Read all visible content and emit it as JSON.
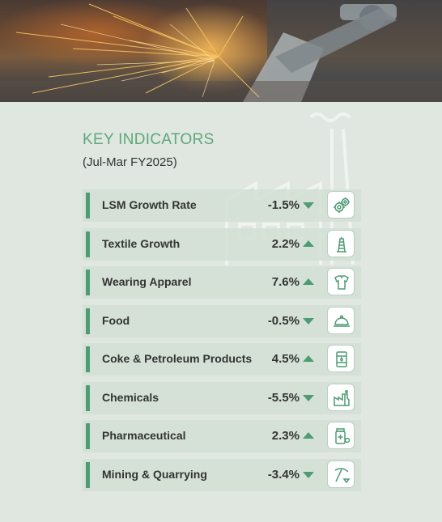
{
  "header": {
    "title": "KEY INDICATORS",
    "subtitle": "(Jul-Mar FY2025)"
  },
  "colors": {
    "accent": "#4e9c74",
    "title": "#5fa77a",
    "background": "#dfe7e0"
  },
  "indicators": [
    {
      "label": "LSM Growth Rate",
      "value": "-1.5%",
      "direction": "down",
      "icon": "gears-icon"
    },
    {
      "label": "Textile Growth",
      "value": "2.2%",
      "direction": "up",
      "icon": "thread-spool-icon"
    },
    {
      "label": "Wearing Apparel",
      "value": "7.6%",
      "direction": "up",
      "icon": "apparel-icon"
    },
    {
      "label": "Food",
      "value": "-0.5%",
      "direction": "down",
      "icon": "food-cloche-icon"
    },
    {
      "label": "Coke & Petroleum Products",
      "value": "4.5%",
      "direction": "up",
      "icon": "oil-barrel-icon"
    },
    {
      "label": "Chemicals",
      "value": "-5.5%",
      "direction": "down",
      "icon": "chemical-plant-icon"
    },
    {
      "label": "Pharmaceutical",
      "value": "2.3%",
      "direction": "up",
      "icon": "medicine-icon"
    },
    {
      "label": "Mining & Quarrying",
      "value": "-3.4%",
      "direction": "down",
      "icon": "pickaxe-icon"
    }
  ]
}
